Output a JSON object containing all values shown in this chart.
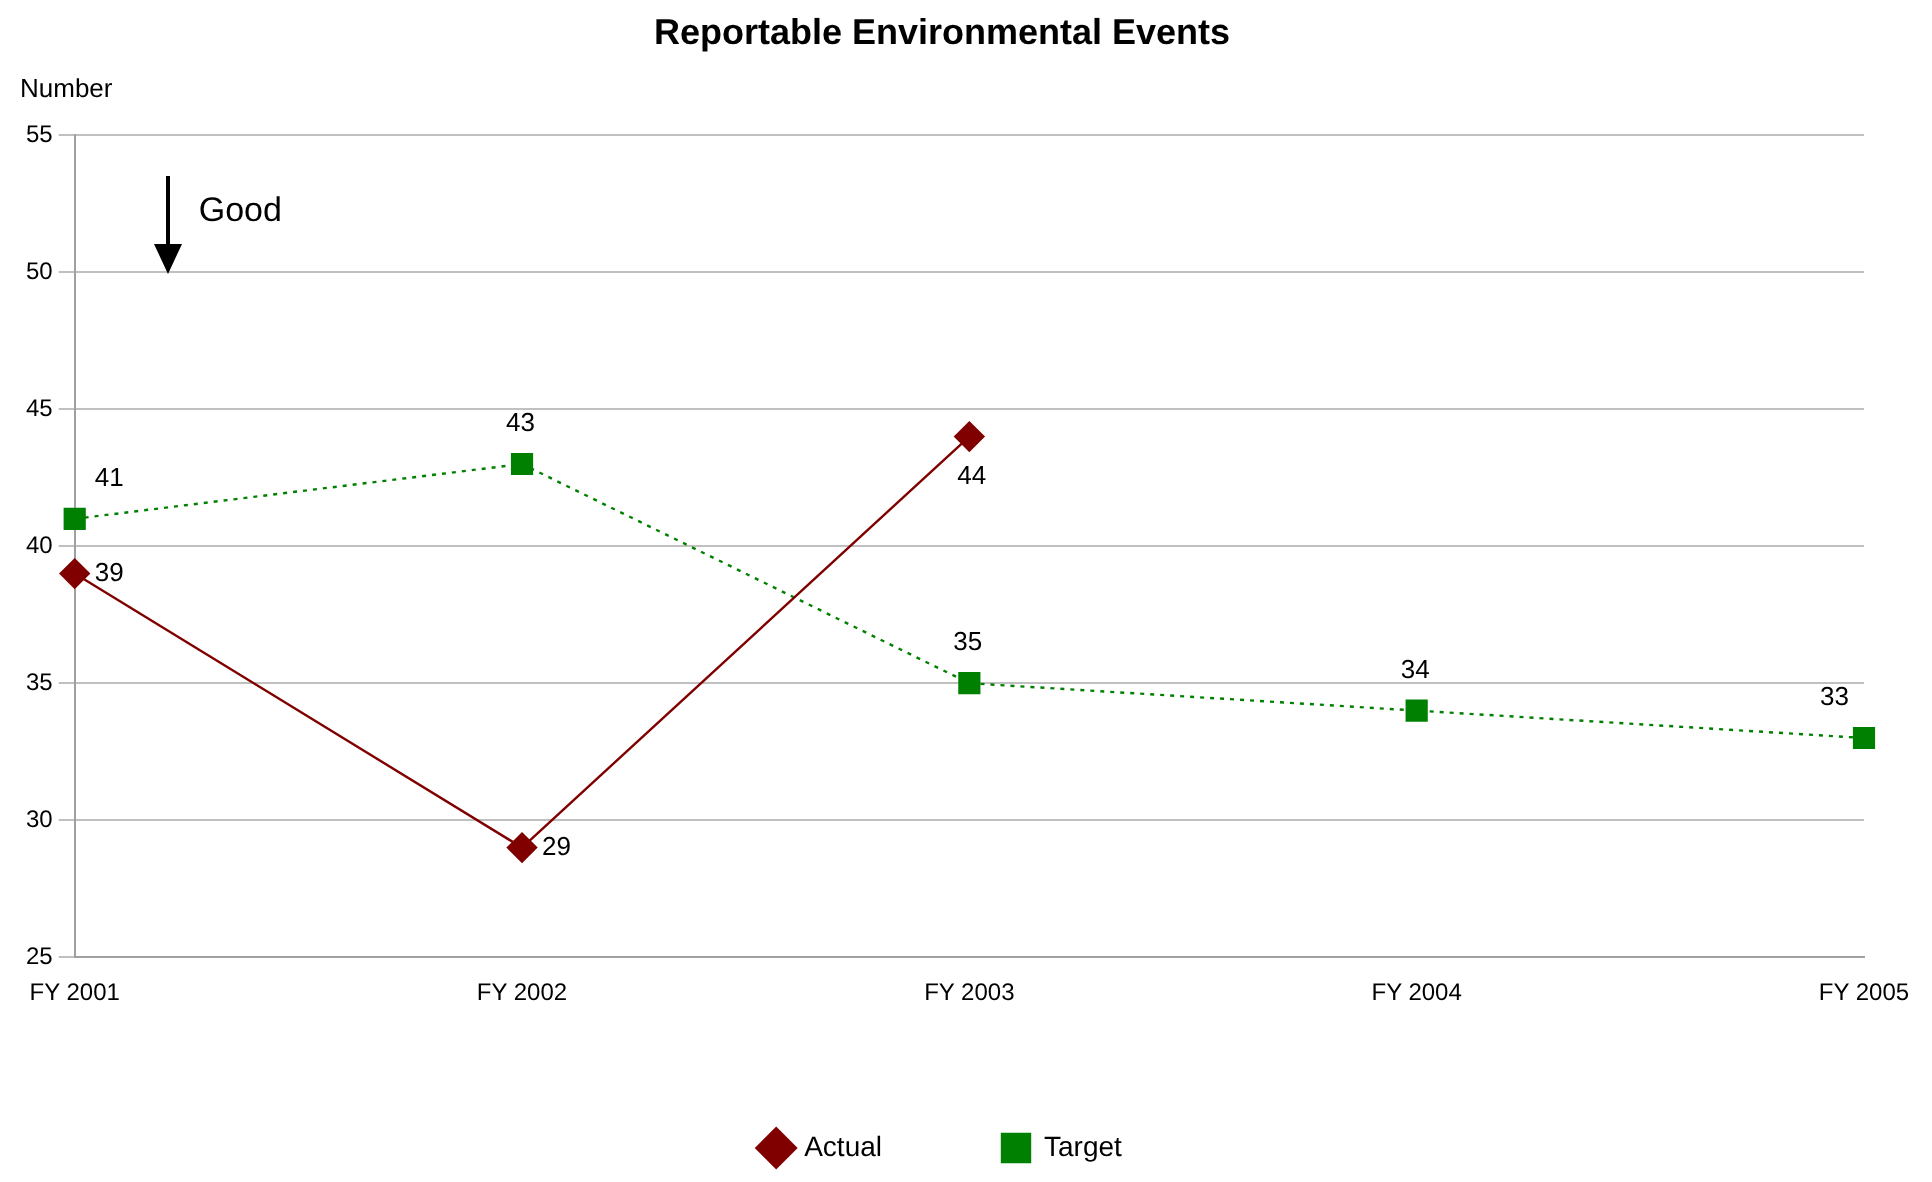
{
  "chart_data": {
    "type": "line",
    "title": "Reportable Environmental Events",
    "ylabel": "Number",
    "categories": [
      "FY 2001",
      "FY 2002",
      "FY 2003",
      "FY 2004",
      "FY 2005"
    ],
    "series": [
      {
        "name": "Actual",
        "color": "#800000",
        "values": [
          39,
          29,
          44,
          null,
          null
        ],
        "marker": "diamond",
        "line_style": "solid"
      },
      {
        "name": "Target",
        "color": "#008000",
        "values": [
          41,
          43,
          35,
          34,
          33
        ],
        "marker": "square",
        "line_style": "dotted"
      }
    ],
    "ylim": [
      25,
      55
    ],
    "yticks": [
      25,
      30,
      35,
      40,
      45,
      50,
      55
    ],
    "grid": "y",
    "legend": "bottom",
    "data_labels": true,
    "annotations": [
      "Good"
    ]
  }
}
